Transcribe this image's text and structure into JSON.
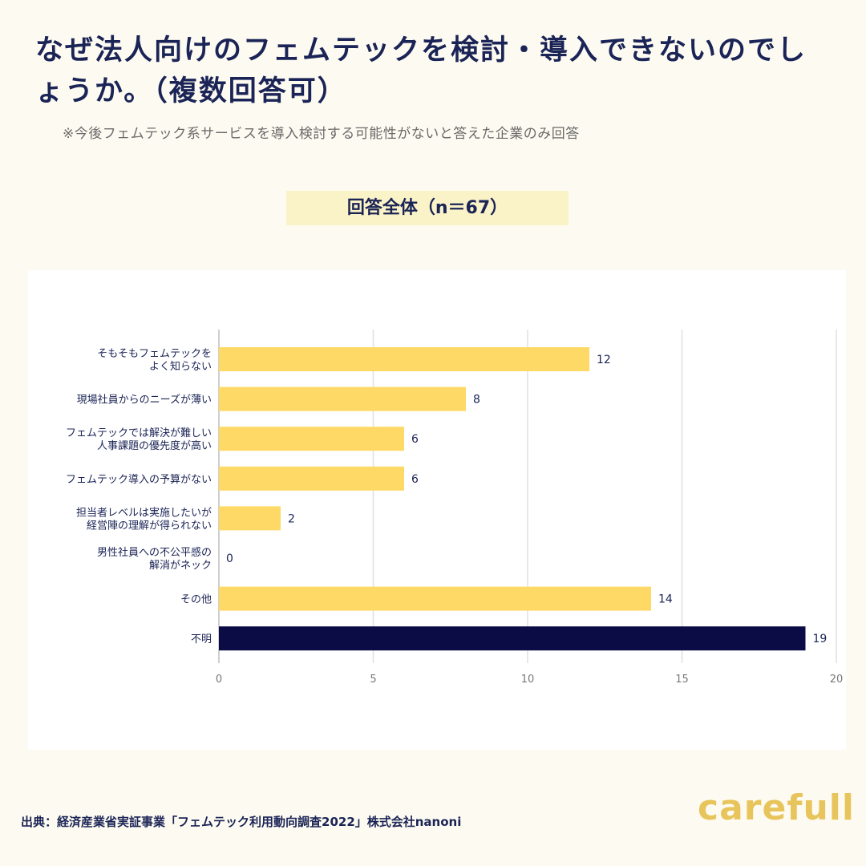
{
  "title": "なぜ法人向けのフェムテックを検討・導入できないのでしょうか。（複数回答可）",
  "subtitle": "※今後フェムテック系サービスを導入検討する可能性がないと答えた企業のみ回答",
  "group_label": "回答全体（n＝67）",
  "source": "出典：経済産業省実証事業「フェムテック利用動向調査2022」株式会社nanoni",
  "logo": "carefull",
  "colors": {
    "bar": "#ffd966",
    "highlight": "#0b0c45",
    "background": "#fdfbf1"
  },
  "chart_data": {
    "type": "bar",
    "orientation": "horizontal",
    "categories": [
      [
        "そもそもフェムテックを",
        "よく知らない"
      ],
      [
        "現場社員からのニーズが薄い"
      ],
      [
        "フェムテックでは解決が難しい",
        "人事課題の優先度が高い"
      ],
      [
        "フェムテック導入の予算がない"
      ],
      [
        "担当者レベルは実施したいが",
        "経営陣の理解が得られない"
      ],
      [
        "男性社員への不公平感の",
        "解消がネック"
      ],
      [
        "その他"
      ],
      [
        "不明"
      ]
    ],
    "values": [
      12,
      8,
      6,
      6,
      2,
      0,
      14,
      19
    ],
    "highlight_index": 7,
    "xlim": [
      0,
      20
    ],
    "xticks": [
      0,
      5,
      10,
      15,
      20
    ],
    "grid": true,
    "xlabel": "",
    "ylabel": ""
  }
}
